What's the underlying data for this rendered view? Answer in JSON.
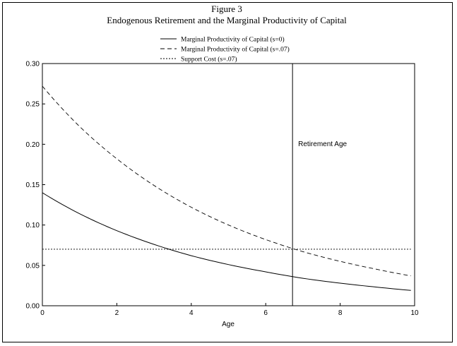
{
  "chart_data": {
    "type": "line",
    "title": "Figure 3",
    "subtitle": "Endogenous Retirement and the Marginal Productivity of Capital",
    "xlabel": "Age",
    "ylabel": "",
    "xlim": [
      0,
      10
    ],
    "ylim": [
      0,
      0.3
    ],
    "x_ticks": [
      "0",
      "2",
      "4",
      "6",
      "8",
      "10"
    ],
    "y_ticks": [
      "0.00",
      "0.05",
      "0.10",
      "0.15",
      "0.20",
      "0.25",
      "0.30"
    ],
    "grid": false,
    "legend_position": "top-center",
    "series": [
      {
        "name": "Marginal Productivity of Capital (s=0)",
        "style": "solid",
        "x": [
          0,
          1,
          2,
          3,
          4,
          5,
          6,
          7,
          8,
          9,
          9.9
        ],
        "y": [
          0.14,
          0.114,
          0.093,
          0.076,
          0.062,
          0.051,
          0.042,
          0.034,
          0.028,
          0.023,
          0.019
        ]
      },
      {
        "name": "Marginal Productivity of Capital (s=.07)",
        "style": "dashed",
        "x": [
          0,
          1,
          2,
          3,
          4,
          5,
          6,
          7,
          8,
          9,
          9.9
        ],
        "y": [
          0.272,
          0.222,
          0.182,
          0.149,
          0.122,
          0.1,
          0.082,
          0.067,
          0.055,
          0.045,
          0.037
        ]
      },
      {
        "name": "Support Cost (s=.07)",
        "style": "dotted",
        "x": [
          0,
          9.9
        ],
        "y": [
          0.07,
          0.07
        ]
      }
    ],
    "annotations": [
      {
        "type": "vline",
        "x": 6.72,
        "text": "Retirement Age"
      }
    ]
  }
}
